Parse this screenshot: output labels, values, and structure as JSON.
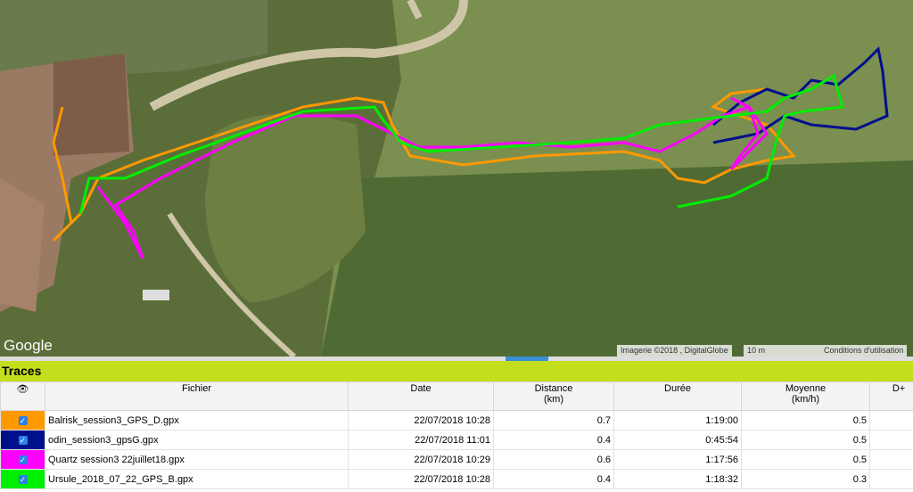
{
  "map": {
    "logo": "Google",
    "attribution": "Imagerie ©2018 , DigitalGlobe",
    "scale": "10 m",
    "terms": "Conditions d'utilisation"
  },
  "panel": {
    "title": "Traces"
  },
  "table": {
    "columns": [
      "Fichier",
      "Date",
      "Distance\n(km)",
      "Durée",
      "Moyenne\n(km/h)",
      "D+"
    ],
    "rows": [
      {
        "color": "#ff9900",
        "file": "Balrisk_session3_GPS_D.gpx",
        "date": "22/07/2018 10:28",
        "distance": 0.7,
        "duration": "1:19:00",
        "speed": 0.5
      },
      {
        "color": "#000f8c",
        "file": "odin_session3_gpsG.gpx",
        "date": "22/07/2018 11:01",
        "distance": 0.4,
        "duration": "0:45:54",
        "speed": 0.5
      },
      {
        "color": "#ff00ff",
        "file": "Quartz session3 22juillet18.gpx",
        "date": "22/07/2018 10:29",
        "distance": 0.6,
        "duration": "1:17:56",
        "speed": 0.5
      },
      {
        "color": "#00ee00",
        "file": "Ursule_2018_07_22_GPS_B.gpx",
        "date": "22/07/2018 10:28",
        "distance": 0.4,
        "duration": "1:18:32",
        "speed": 0.3
      }
    ]
  }
}
